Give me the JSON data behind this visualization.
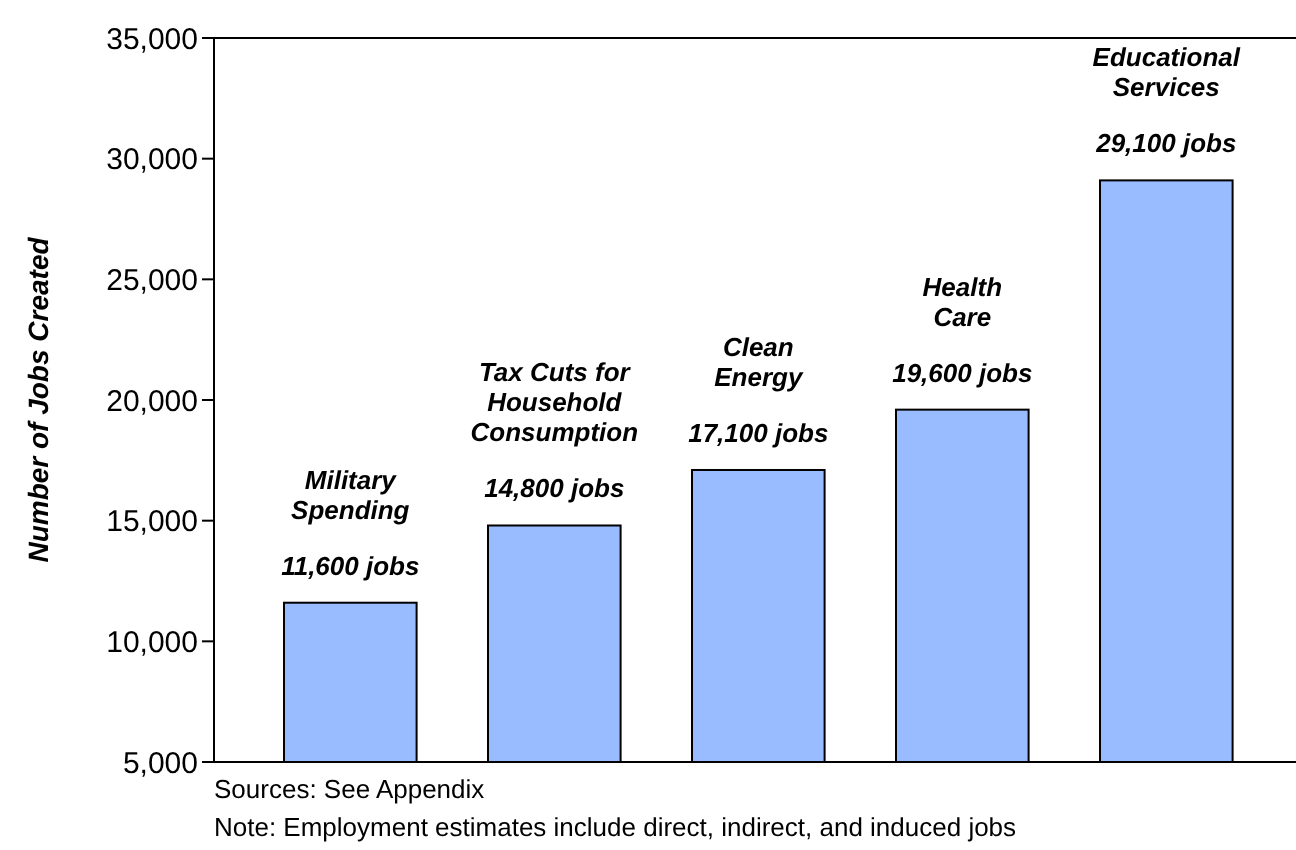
{
  "chart_data": {
    "type": "bar",
    "ylabel": "Number of Jobs Created",
    "categories": [
      "Military\nSpending",
      "Tax Cuts for\nHousehold\nConsumption",
      "Clean\nEnergy",
      "Health\nCare",
      "Educational\nServices"
    ],
    "values": [
      11600,
      14800,
      17100,
      19600,
      29100
    ],
    "value_labels": [
      "11,600 jobs",
      "14,800 jobs",
      "17,100 jobs",
      "19,600 jobs",
      "29,100 jobs"
    ],
    "color": "#99bbff",
    "ylim": [
      5000,
      35000
    ],
    "yticks": [
      {
        "value": 5000,
        "label": "5,000"
      },
      {
        "value": 10000,
        "label": "10,000"
      },
      {
        "value": 15000,
        "label": "15,000"
      },
      {
        "value": 20000,
        "label": "20,000"
      },
      {
        "value": 25000,
        "label": "25,000"
      },
      {
        "value": 30000,
        "label": "30,000"
      },
      {
        "value": 35000,
        "label": "35,000"
      }
    ],
    "grid": false,
    "annotations": [
      "Sources:  See Appendix",
      "Note:  Employment estimates include direct, indirect, and induced jobs"
    ]
  }
}
